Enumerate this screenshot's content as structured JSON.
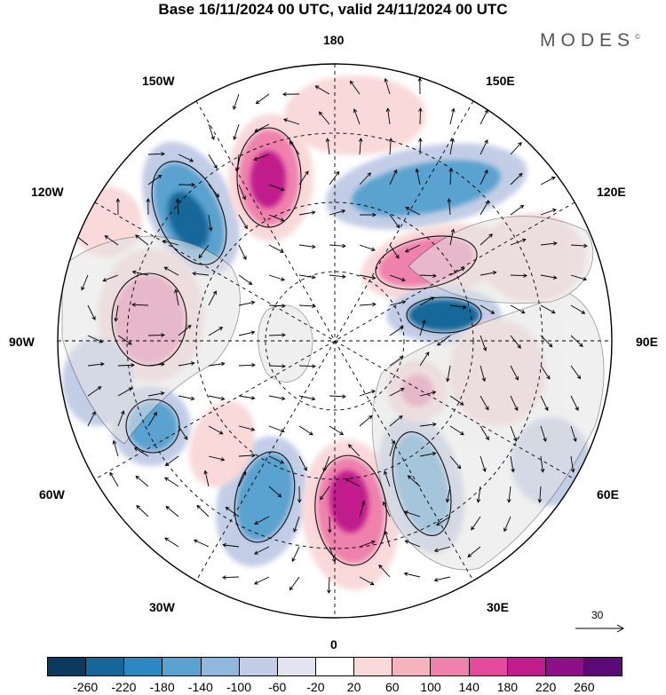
{
  "title": "Base 16/11/2024 00 UTC, valid 24/11/2024 00 UTC",
  "brand": "MODES",
  "brand_mark": "©",
  "longitude_labels": {
    "top": "180",
    "bottom": "0",
    "left": "90W",
    "right": "90E",
    "top_left": "150W",
    "top_right": "150E",
    "upper_left": "120W",
    "upper_right": "120E",
    "lower_left": "60W",
    "lower_right": "60E",
    "bottom_left": "30W",
    "bottom_right": "30E"
  },
  "vector_scale": {
    "label": "30"
  },
  "colorbar": {
    "colors": [
      "#0d3a5c",
      "#15679a",
      "#2b88c0",
      "#5aa2cf",
      "#8fb8dc",
      "#c3cde6",
      "#e4e4f0",
      "#ffffff",
      "#f9d9d9",
      "#f5b3bd",
      "#ee82ad",
      "#e44a9c",
      "#c01c8b",
      "#8f0f86",
      "#5c0a78"
    ],
    "ticks": [
      "-260",
      "-220",
      "-180",
      "-140",
      "-100",
      "-60",
      "-20",
      "20",
      "60",
      "100",
      "140",
      "180",
      "220",
      "260"
    ]
  },
  "anomaly_palette": {
    "strong_negative": "#15679a",
    "negative": "#5aa2cf",
    "weak_negative": "#c3cde6",
    "weak_positive": "#f9d9d9",
    "positive": "#ee82ad",
    "strong_positive": "#c01c8b",
    "land": "#e6e6e6"
  }
}
